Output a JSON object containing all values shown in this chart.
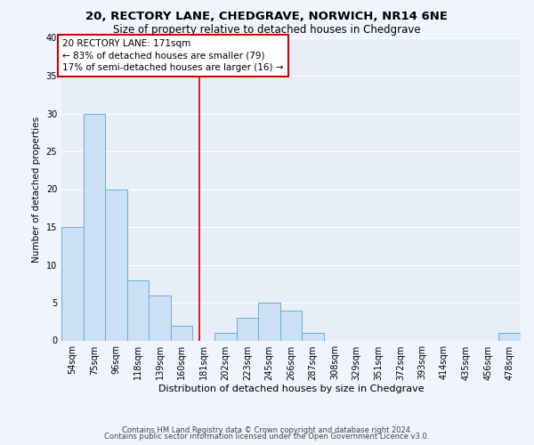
{
  "title1": "20, RECTORY LANE, CHEDGRAVE, NORWICH, NR14 6NE",
  "title2": "Size of property relative to detached houses in Chedgrave",
  "xlabel": "Distribution of detached houses by size in Chedgrave",
  "ylabel": "Number of detached properties",
  "categories": [
    "54sqm",
    "75sqm",
    "96sqm",
    "118sqm",
    "139sqm",
    "160sqm",
    "181sqm",
    "202sqm",
    "223sqm",
    "245sqm",
    "266sqm",
    "287sqm",
    "308sqm",
    "329sqm",
    "351sqm",
    "372sqm",
    "393sqm",
    "414sqm",
    "435sqm",
    "456sqm",
    "478sqm"
  ],
  "values": [
    15,
    30,
    20,
    8,
    6,
    2,
    0,
    1,
    3,
    5,
    4,
    1,
    0,
    0,
    0,
    0,
    0,
    0,
    0,
    0,
    1
  ],
  "bar_color": "#cce0f5",
  "bar_edge_color": "#6aaed6",
  "vline_x": 5.81,
  "vline_color": "#cc0000",
  "annotation_text": "20 RECTORY LANE: 171sqm\n← 83% of detached houses are smaller (79)\n17% of semi-detached houses are larger (16) →",
  "annotation_box_color": "#cc0000",
  "ylim": [
    0,
    40
  ],
  "yticks": [
    0,
    5,
    10,
    15,
    20,
    25,
    30,
    35,
    40
  ],
  "footer1": "Contains HM Land Registry data © Crown copyright and database right 2024.",
  "footer2": "Contains public sector information licensed under the Open Government Licence v3.0.",
  "bg_color": "#f0f4fc",
  "plot_bg_color": "#e8eef8",
  "grid_color": "#ffffff",
  "title1_fontsize": 9.5,
  "title2_fontsize": 8.5,
  "xlabel_fontsize": 8,
  "ylabel_fontsize": 7.5,
  "tick_fontsize": 7,
  "annotation_fontsize": 7.5,
  "footer_fontsize": 6
}
